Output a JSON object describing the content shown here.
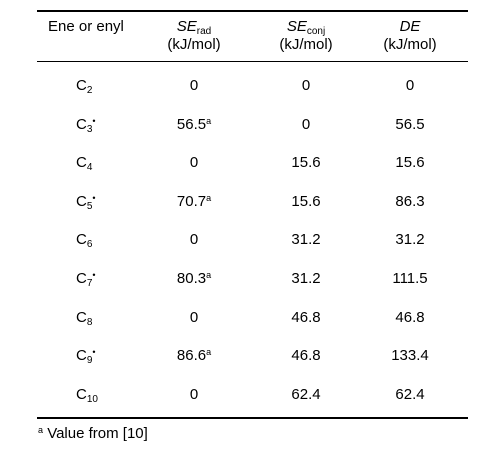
{
  "table": {
    "header": [
      {
        "text": "Ene or enyl"
      },
      {
        "main": "SE",
        "sub": "rad",
        "unit": "(kJ/mol)"
      },
      {
        "main": "SE",
        "sub": "conj",
        "unit": "(kJ/mol)"
      },
      {
        "main": "DE",
        "unit": "(kJ/mol)"
      }
    ],
    "rows": [
      {
        "label": "C",
        "sub": "2",
        "se_rad": "0",
        "se_conj": "0",
        "de": "0"
      },
      {
        "label": "C",
        "sub": "3",
        "radical": "•",
        "se_rad": "56.5",
        "se_rad_note": "a",
        "se_conj": "0",
        "de": "56.5"
      },
      {
        "label": "C",
        "sub": "4",
        "se_rad": "0",
        "se_conj": "15.6",
        "de": "15.6"
      },
      {
        "label": "C",
        "sub": "5",
        "radical": "•",
        "se_rad": "70.7",
        "se_rad_note": "a",
        "se_conj": "15.6",
        "de": "86.3"
      },
      {
        "label": "C",
        "sub": "6",
        "se_rad": "0",
        "se_conj": "31.2",
        "de": "31.2"
      },
      {
        "label": "C",
        "sub": "7",
        "radical": "•",
        "se_rad": "80.3",
        "se_rad_note": "a",
        "se_conj": "31.2",
        "de": "111.5"
      },
      {
        "label": "C",
        "sub": "8",
        "se_rad": "0",
        "se_conj": "46.8",
        "de": "46.8"
      },
      {
        "label": "C",
        "sub": "9",
        "radical": "•",
        "se_rad": "86.6",
        "se_rad_note": "a",
        "se_conj": "46.8",
        "de": "133.4"
      },
      {
        "label": "C",
        "sub": "10",
        "se_rad": "0",
        "se_conj": "62.4",
        "de": "62.4"
      }
    ]
  },
  "footnote": {
    "mark": "a",
    "text": "Value from [10]"
  }
}
